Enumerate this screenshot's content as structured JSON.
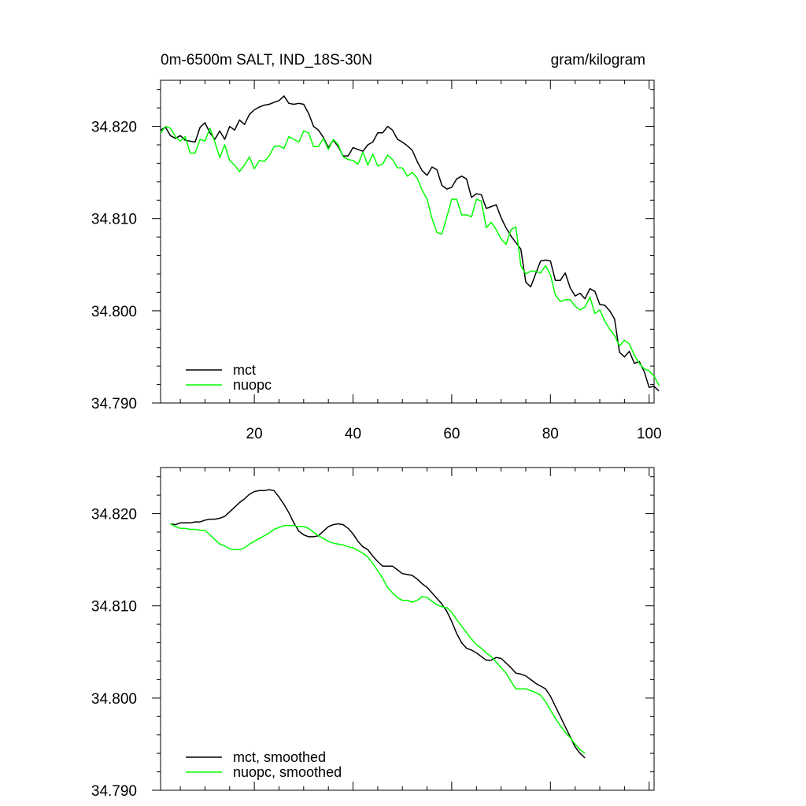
{
  "chart_data": [
    {
      "type": "line",
      "title": "0m-6500m SALT, IND_18S-30N",
      "units": "gram/kilogram",
      "xlabel": "",
      "ylabel": "",
      "xlim": [
        1,
        101
      ],
      "ylim": [
        34.79,
        34.825
      ],
      "xticks": [
        20,
        40,
        60,
        80,
        100
      ],
      "xtick_labels": [
        "20",
        "40",
        "60",
        "80",
        "100"
      ],
      "yticks": [
        34.79,
        34.8,
        34.81,
        34.82
      ],
      "ytick_labels": [
        "34.790",
        "34.800",
        "34.810",
        "34.820"
      ],
      "legend_position": "bottom-left",
      "series": [
        {
          "name": "mct",
          "color": "#000000",
          "x_start": 1,
          "values": [
            34.8196,
            34.8199,
            34.819,
            34.8187,
            34.819,
            34.8185,
            34.8184,
            34.8183,
            34.8199,
            34.8204,
            34.8193,
            34.8186,
            34.8195,
            34.8186,
            34.82,
            34.8196,
            34.8207,
            34.8202,
            34.8213,
            34.8218,
            34.8221,
            34.8223,
            34.8224,
            34.8226,
            34.8228,
            34.8233,
            34.8225,
            34.8224,
            34.8225,
            34.8224,
            34.8214,
            34.82,
            34.8196,
            34.8188,
            34.8177,
            34.8185,
            34.8178,
            34.8168,
            34.8168,
            34.8177,
            34.8175,
            34.8173,
            34.818,
            34.8183,
            34.8193,
            34.8193,
            34.82,
            34.8196,
            34.8186,
            34.8183,
            34.8179,
            34.8174,
            34.8162,
            34.8152,
            34.8147,
            34.8156,
            34.8153,
            34.8136,
            34.8132,
            34.8134,
            34.8143,
            34.8146,
            34.8143,
            34.8123,
            34.8127,
            34.8126,
            34.8111,
            34.8113,
            34.8115,
            34.8101,
            34.809,
            34.8081,
            34.8074,
            34.8067,
            34.8031,
            34.8026,
            34.804,
            34.8054,
            34.8055,
            34.8054,
            34.8033,
            34.8033,
            34.8041,
            34.8025,
            34.8016,
            34.8019,
            34.8013,
            34.8024,
            34.8021,
            34.8007,
            34.8006,
            34.8,
            34.7991,
            34.7955,
            34.795,
            34.7956,
            34.7943,
            34.7945,
            34.7934,
            34.7917,
            34.7918,
            34.7913
          ]
        },
        {
          "name": "nuopc",
          "color": "#00ff00",
          "x_start": 1,
          "values": [
            34.8193,
            34.82,
            34.8198,
            34.8189,
            34.8184,
            34.8189,
            34.8171,
            34.8171,
            34.8186,
            34.8184,
            34.8198,
            34.8183,
            34.8166,
            34.818,
            34.8163,
            34.8158,
            34.8151,
            34.8158,
            34.8167,
            34.8154,
            34.8163,
            34.8162,
            34.8168,
            34.8178,
            34.8179,
            34.8176,
            34.8189,
            34.8186,
            34.8183,
            34.8195,
            34.8193,
            34.8178,
            34.8178,
            34.8187,
            34.8175,
            34.8186,
            34.818,
            34.8167,
            34.8164,
            34.8163,
            34.8159,
            34.8172,
            34.8158,
            34.817,
            34.8157,
            34.8159,
            34.8169,
            34.8164,
            34.8155,
            34.8155,
            34.8146,
            34.815,
            34.8144,
            34.8131,
            34.8121,
            34.81,
            34.8085,
            34.8083,
            34.8102,
            34.8121,
            34.8121,
            34.8104,
            34.8104,
            34.8102,
            34.8121,
            34.8119,
            34.809,
            34.8096,
            34.8088,
            34.8078,
            34.8072,
            34.8088,
            34.8091,
            34.8049,
            34.804,
            34.8043,
            34.8043,
            34.8041,
            34.8049,
            34.8039,
            34.8017,
            34.801,
            34.8012,
            34.8012,
            34.8005,
            34.8001,
            34.8004,
            34.8015,
            34.7997,
            34.8001,
            34.7989,
            34.798,
            34.7973,
            34.7962,
            34.7968,
            34.7964,
            34.7952,
            34.7943,
            34.7937,
            34.7935,
            34.7929,
            34.7919
          ]
        }
      ]
    },
    {
      "type": "line",
      "title": "",
      "xlabel": "",
      "ylabel": "",
      "xlim": [
        1,
        101
      ],
      "ylim": [
        34.79,
        34.825
      ],
      "xticks": [
        20,
        40,
        60,
        80,
        100
      ],
      "xtick_labels": [],
      "yticks": [
        34.79,
        34.8,
        34.81,
        34.82
      ],
      "ytick_labels": [
        "34.790",
        "34.800",
        "34.810",
        "34.820"
      ],
      "legend_position": "bottom-left",
      "series": [
        {
          "name": "mct, smoothed",
          "color": "#000000",
          "x_start": 3,
          "values": [
            34.8189,
            34.8188,
            34.819,
            34.819,
            34.819,
            34.8191,
            34.8191,
            34.8193,
            34.8194,
            34.8194,
            34.8195,
            34.8197,
            34.8202,
            34.8207,
            34.8212,
            34.8216,
            34.8221,
            34.8224,
            34.8225,
            34.8225,
            34.8226,
            34.8225,
            34.8218,
            34.821,
            34.8201,
            34.819,
            34.8181,
            34.8177,
            34.8175,
            34.8175,
            34.8176,
            34.8181,
            34.8186,
            34.8188,
            34.8189,
            34.8188,
            34.8184,
            34.8178,
            34.817,
            34.8164,
            34.8161,
            34.8154,
            34.8148,
            34.8143,
            34.8143,
            34.8143,
            34.8139,
            34.8135,
            34.8134,
            34.8133,
            34.8129,
            34.8124,
            34.812,
            34.8114,
            34.8108,
            34.8102,
            34.8094,
            34.8083,
            34.807,
            34.806,
            34.8054,
            34.8052,
            34.8049,
            34.8045,
            34.8041,
            34.8041,
            34.8044,
            34.8043,
            34.8038,
            34.8033,
            34.8027,
            34.8026,
            34.8024,
            34.802,
            34.8016,
            34.8013,
            34.801,
            34.8002,
            34.7991,
            34.798,
            34.7969,
            34.7958,
            34.7947,
            34.794,
            34.7935
          ]
        },
        {
          "name": "nuopc, smoothed",
          "color": "#00ff00",
          "x_start": 3,
          "values": [
            34.8189,
            34.8186,
            34.8184,
            34.8184,
            34.8183,
            34.8183,
            34.8182,
            34.8182,
            34.8177,
            34.8172,
            34.8167,
            34.8165,
            34.8162,
            34.8161,
            34.8161,
            34.8163,
            34.8167,
            34.817,
            34.8173,
            34.8176,
            34.8179,
            34.8183,
            34.8185,
            34.8187,
            34.8187,
            34.8187,
            34.8186,
            34.8186,
            34.8184,
            34.818,
            34.8176,
            34.8173,
            34.817,
            34.8168,
            34.8167,
            34.8166,
            34.8164,
            34.8163,
            34.816,
            34.8157,
            34.8153,
            34.8146,
            34.8138,
            34.813,
            34.812,
            34.8114,
            34.8109,
            34.8106,
            34.8106,
            34.8104,
            34.8106,
            34.811,
            34.8109,
            34.8105,
            34.8101,
            34.8099,
            34.8098,
            34.8093,
            34.8085,
            34.8078,
            34.8071,
            34.8064,
            34.8058,
            34.8054,
            34.8049,
            34.8045,
            34.8039,
            34.8033,
            34.8027,
            34.8018,
            34.801,
            34.801,
            34.801,
            34.8008,
            34.8006,
            34.8003,
            34.7996,
            34.7987,
            34.7978,
            34.797,
            34.7963,
            34.7957,
            34.795,
            34.7944,
            34.794
          ]
        }
      ]
    }
  ]
}
